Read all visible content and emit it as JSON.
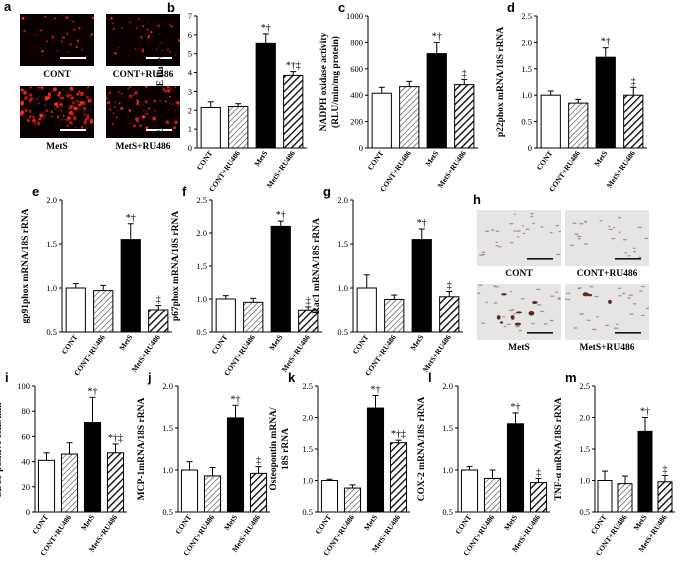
{
  "micrographs": {
    "a": {
      "label": "a",
      "captions": [
        "CONT",
        "CONT+RU486",
        "MetS",
        "MetS+RU486"
      ]
    },
    "h": {
      "label": "h",
      "captions": [
        "CONT",
        "CONT+RU486",
        "MetS",
        "MetS+RU486"
      ]
    }
  },
  "colors": {
    "fluorescence_bg": "#0a0000",
    "fluorescence_signal": "#ff2a1a",
    "histology_bg": "#e7e5e3",
    "histology_stain": "#5a2a1e"
  },
  "chart_data": [
    {
      "panel": "b",
      "type": "bar",
      "categories": [
        "CONT",
        "CONT+RU486",
        "MetS",
        "MetS+RU486"
      ],
      "values": [
        2.15,
        2.2,
        5.55,
        3.85
      ],
      "errors": [
        0.3,
        0.15,
        0.5,
        0.2
      ],
      "markers": [
        "",
        "",
        "*†",
        "*†‡"
      ],
      "fills": [
        "white",
        "hatch",
        "black",
        "thick-hatch"
      ],
      "ylabel": "Relative DHE fluorescence",
      "ylim": [
        0,
        7
      ],
      "yticks": [
        "0",
        "1",
        "2",
        "3",
        "4",
        "5",
        "6",
        "7"
      ]
    },
    {
      "panel": "c",
      "type": "bar",
      "categories": [
        "CONT",
        "CONT+RU486",
        "MetS",
        "MetS+RU486"
      ],
      "values": [
        415,
        465,
        715,
        480
      ],
      "errors": [
        45,
        40,
        85,
        40
      ],
      "markers": [
        "",
        "",
        "*†",
        "‡"
      ],
      "fills": [
        "white",
        "hatch",
        "black",
        "thick-hatch"
      ],
      "ylabel": "NADPH oxidase activity",
      "ylabel2": "(RLU/min/mg protein)",
      "ylim": [
        0,
        1000
      ],
      "yticks": [
        "0",
        "200",
        "400",
        "600",
        "800",
        "1000"
      ]
    },
    {
      "panel": "d",
      "type": "bar",
      "categories": [
        "CONT",
        "CONT+RU486",
        "MetS",
        "MetS+RU486"
      ],
      "values": [
        1.0,
        0.85,
        1.72,
        1.0
      ],
      "errors": [
        0.08,
        0.07,
        0.18,
        0.15
      ],
      "markers": [
        "",
        "",
        "*†",
        "‡"
      ],
      "fills": [
        "white",
        "hatch",
        "black",
        "thick-hatch"
      ],
      "ylabel": "p22phox mRNA/18S rRNA",
      "ylim": [
        0,
        2.5
      ],
      "yticks": [
        "0",
        "0.5",
        "1.0",
        "1.5",
        "2.0",
        "2.5"
      ]
    },
    {
      "panel": "e",
      "type": "bar",
      "categories": [
        "CONT",
        "CONT+RU486",
        "MetS",
        "MetS+RU486"
      ],
      "values": [
        1.0,
        0.97,
        1.55,
        0.75
      ],
      "errors": [
        0.05,
        0.06,
        0.18,
        0.05
      ],
      "markers": [
        "",
        "",
        "*†",
        "‡"
      ],
      "fills": [
        "white",
        "hatch",
        "black",
        "thick-hatch"
      ],
      "ylabel": "gp91phox mRNA/18S rRNA",
      "ylim": [
        0.5,
        2.0
      ],
      "yticks": [
        "0.5",
        "1.0",
        "1.5",
        "2.0"
      ]
    },
    {
      "panel": "f",
      "type": "bar",
      "categories": [
        "CONT",
        "CONT+RU486",
        "MetS",
        "MetS+RU486"
      ],
      "values": [
        1.0,
        0.95,
        2.1,
        0.83
      ],
      "errors": [
        0.05,
        0.06,
        0.08,
        0.05
      ],
      "markers": [
        "",
        "",
        "*†",
        "‡"
      ],
      "fills": [
        "white",
        "hatch",
        "black",
        "thick-hatch"
      ],
      "ylabel": "p67phox mRNA/18S rRNA",
      "ylim": [
        0.5,
        2.5
      ],
      "yticks": [
        "0.5",
        "1.0",
        "1.5",
        "2.0",
        "2.5"
      ]
    },
    {
      "panel": "g",
      "type": "bar",
      "categories": [
        "CONT",
        "CONT+RU486",
        "MetS",
        "MetS+RU486"
      ],
      "values": [
        1.0,
        0.87,
        1.55,
        0.9
      ],
      "errors": [
        0.15,
        0.05,
        0.12,
        0.06
      ],
      "markers": [
        "",
        "",
        "*†",
        "‡"
      ],
      "fills": [
        "white",
        "hatch",
        "black",
        "thick-hatch"
      ],
      "ylabel": "Rac1 mRNA/18S rRNA",
      "ylim": [
        0.5,
        2.0
      ],
      "yticks": [
        "0.5",
        "1.0",
        "1.5",
        "2.0"
      ]
    },
    {
      "panel": "i",
      "type": "bar",
      "categories": [
        "CONT",
        "CONT+RU486",
        "MetS",
        "MetS+RU486"
      ],
      "values": [
        41,
        46,
        71,
        47
      ],
      "errors": [
        6,
        9,
        20,
        7
      ],
      "markers": [
        "",
        "",
        "*†",
        "*†‡"
      ],
      "fills": [
        "white",
        "hatch",
        "black",
        "thick-hatch"
      ],
      "ylabel": "CD68-positive cells/mm²",
      "ylim": [
        0,
        100
      ],
      "yticks": [
        "0",
        "20",
        "40",
        "60",
        "80",
        "100"
      ]
    },
    {
      "panel": "j",
      "type": "bar",
      "categories": [
        "CONT",
        "CONT+RU486",
        "MetS",
        "MetS+RU486"
      ],
      "values": [
        1.0,
        0.93,
        1.62,
        0.96
      ],
      "errors": [
        0.1,
        0.1,
        0.15,
        0.08
      ],
      "markers": [
        "",
        "",
        "*†",
        "‡"
      ],
      "fills": [
        "white",
        "hatch",
        "black",
        "thick-hatch"
      ],
      "ylabel": "MCP-1mRNA/18S rRNA",
      "ylim": [
        0.5,
        2.0
      ],
      "yticks": [
        "0.5",
        "1.0",
        "1.5",
        "2.0"
      ]
    },
    {
      "panel": "k",
      "type": "bar",
      "categories": [
        "CONT",
        "CONT+RU486",
        "MetS",
        "MetS+RU486"
      ],
      "values": [
        1.0,
        0.88,
        2.15,
        1.6
      ],
      "errors": [
        0.02,
        0.05,
        0.2,
        0.04
      ],
      "markers": [
        "",
        "",
        "*†",
        "*†‡"
      ],
      "fills": [
        "white",
        "hatch",
        "black",
        "thick-hatch"
      ],
      "ylabel": "Osteopontin mRNA/",
      "ylabel2": "18S rRNA",
      "ylim": [
        0.5,
        2.5
      ],
      "yticks": [
        "0.5",
        "1.0",
        "1.5",
        "2.0",
        "2.5"
      ]
    },
    {
      "panel": "l",
      "type": "bar",
      "categories": [
        "CONT",
        "CONT+RU486",
        "MetS",
        "MetS+RU486"
      ],
      "values": [
        1.0,
        0.9,
        1.55,
        0.85
      ],
      "errors": [
        0.04,
        0.1,
        0.13,
        0.05
      ],
      "markers": [
        "",
        "",
        "*†",
        "‡"
      ],
      "fills": [
        "white",
        "hatch",
        "black",
        "thick-hatch"
      ],
      "ylabel": "COX-2 mRNA/18S rRNA",
      "ylim": [
        0.5,
        2.0
      ],
      "yticks": [
        "0.5",
        "1.0",
        "1.5",
        "2.0"
      ]
    },
    {
      "panel": "m",
      "type": "bar",
      "categories": [
        "CONT",
        "CONT+RU486",
        "MetS",
        "MetS+RU486"
      ],
      "values": [
        1.0,
        0.95,
        1.78,
        0.98
      ],
      "errors": [
        0.15,
        0.12,
        0.22,
        0.1
      ],
      "markers": [
        "",
        "",
        "*†",
        "‡"
      ],
      "fills": [
        "white",
        "hatch",
        "black",
        "thick-hatch"
      ],
      "ylabel": "TNF-α mRNA/18S rRNA",
      "ylim": [
        0.5,
        2.5
      ],
      "yticks": [
        "0.5",
        "1.0",
        "1.5",
        "2.0",
        "2.5"
      ]
    }
  ]
}
